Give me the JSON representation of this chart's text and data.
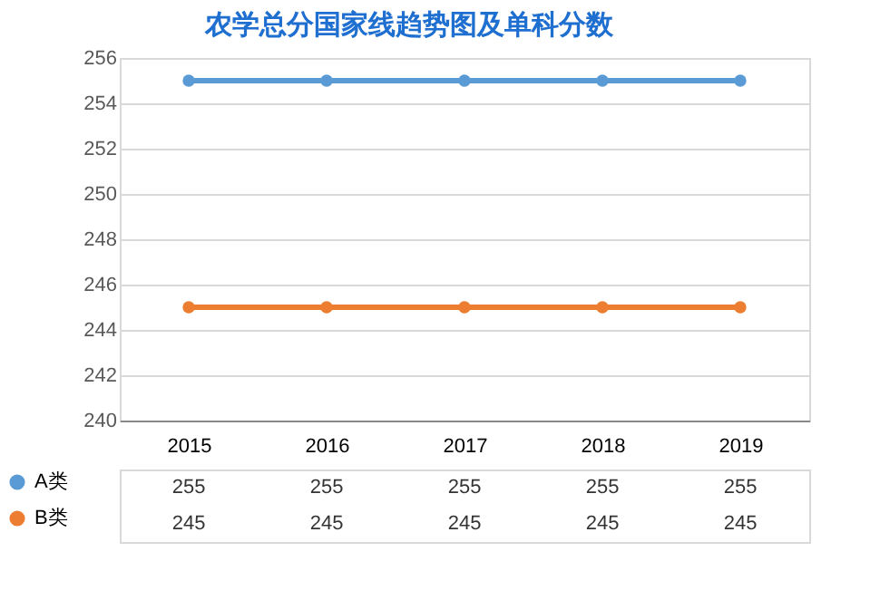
{
  "chart_data": {
    "type": "line",
    "title": "农学总分国家线趋势图及单科分数",
    "categories": [
      "2015",
      "2016",
      "2017",
      "2018",
      "2019"
    ],
    "series": [
      {
        "name": "A类",
        "color": "#5b9bd5",
        "values": [
          255,
          255,
          255,
          255,
          255
        ]
      },
      {
        "name": "B类",
        "color": "#ed7d31",
        "values": [
          245,
          245,
          245,
          245,
          245
        ]
      }
    ],
    "ylim": [
      240,
      256
    ],
    "yticks": [
      240,
      242,
      244,
      246,
      248,
      250,
      252,
      254,
      256
    ],
    "grid": "y",
    "legend": "bottom",
    "marker": "circle",
    "line_style": "solid",
    "data_labels": true
  }
}
